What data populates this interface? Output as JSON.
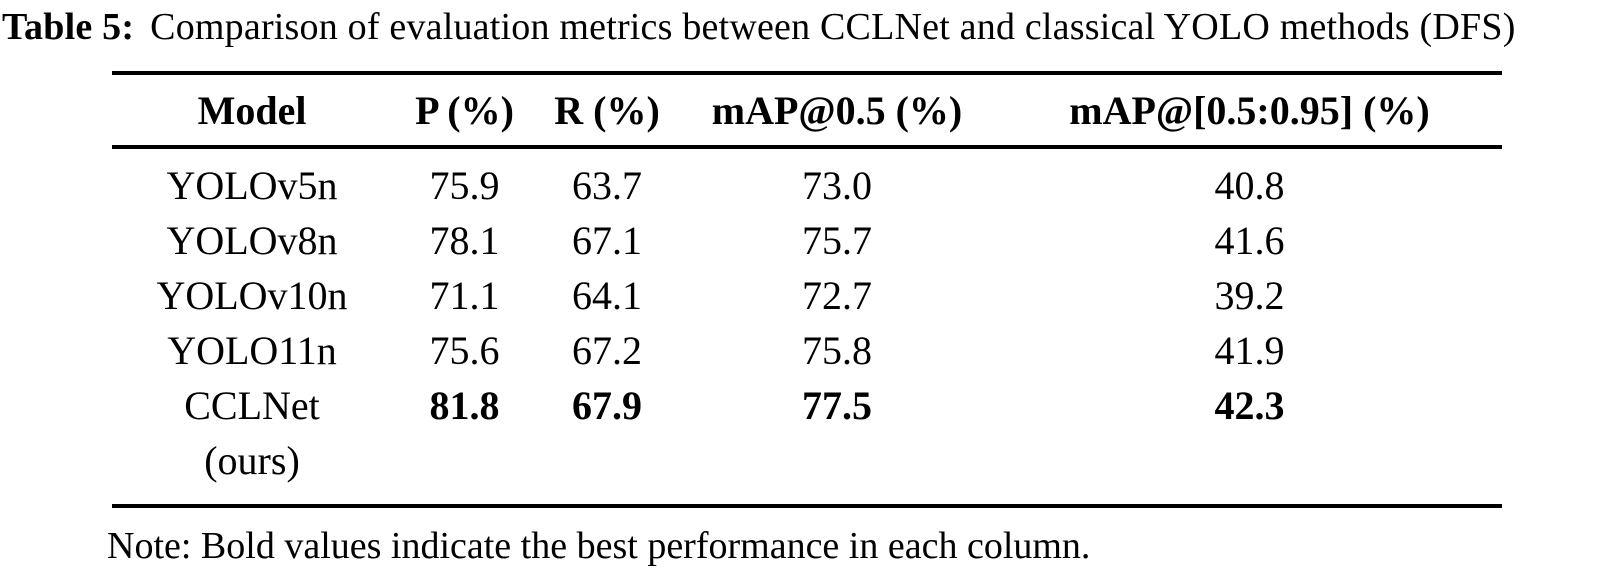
{
  "page": {
    "background_color": "#ffffff",
    "text_color": "#000000"
  },
  "caption": {
    "label": "Table 5:",
    "text": "Comparison of evaluation metrics between CCLNet and classical YOLO methods (DFS)"
  },
  "table": {
    "columns": [
      "Model",
      "P (%)",
      "R (%)",
      "mAP@0.5 (%)",
      "mAP@[0.5:0.95] (%)"
    ],
    "rows": [
      {
        "model": "YOLOv5n",
        "model_line2": "",
        "values": [
          "75.9",
          "63.7",
          "73.0",
          "40.8"
        ],
        "best": false
      },
      {
        "model": "YOLOv8n",
        "model_line2": "",
        "values": [
          "78.1",
          "67.1",
          "75.7",
          "41.6"
        ],
        "best": false
      },
      {
        "model": "YOLOv10n",
        "model_line2": "",
        "values": [
          "71.1",
          "64.1",
          "72.7",
          "39.2"
        ],
        "best": false
      },
      {
        "model": "YOLO11n",
        "model_line2": "",
        "values": [
          "75.6",
          "67.2",
          "75.8",
          "41.9"
        ],
        "best": false
      },
      {
        "model": "CCLNet",
        "model_line2": "(ours)",
        "values": [
          "81.8",
          "67.9",
          "77.5",
          "42.3"
        ],
        "best": true
      }
    ]
  },
  "note": "Note: Bold values indicate the best performance in each column."
}
